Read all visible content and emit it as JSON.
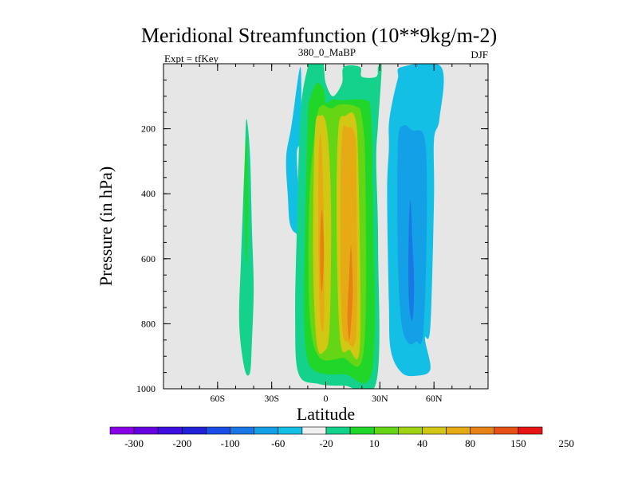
{
  "chart_data": {
    "type": "heatmap",
    "title": "Meridional Streamfunction (10**9kg/m-2)",
    "left_label": "Expt = tfKey",
    "center_label": "380_0_MaBP",
    "right_label": "DJF",
    "xlabel": "Latitude",
    "ylabel": "Pressure (in hPa)",
    "xlim": [
      -90,
      90
    ],
    "ylim": [
      1000,
      0
    ],
    "y_inverted": true,
    "x_ticks": [
      {
        "value": -60,
        "label": "60S"
      },
      {
        "value": -30,
        "label": "30S"
      },
      {
        "value": 0,
        "label": "0"
      },
      {
        "value": 30,
        "label": "30N"
      },
      {
        "value": 60,
        "label": "60N"
      }
    ],
    "y_ticks": [
      {
        "value": 200,
        "label": "200"
      },
      {
        "value": 400,
        "label": "400"
      },
      {
        "value": 600,
        "label": "600"
      },
      {
        "value": 800,
        "label": "800"
      },
      {
        "value": 1000,
        "label": "1000"
      }
    ],
    "background_color": "#e6e6e6",
    "colorbar": {
      "colors": [
        "#8a00e6",
        "#6600e0",
        "#3c0fe0",
        "#2020d6",
        "#1a4de6",
        "#1a78e6",
        "#14a0e6",
        "#14bfe6",
        "#f0f0f0",
        "#14d28c",
        "#20d628",
        "#64d614",
        "#a0d214",
        "#d2c814",
        "#e6aa14",
        "#e68214",
        "#e65014",
        "#e61414"
      ],
      "labels": [
        "-300",
        "-200",
        "-100",
        "-60",
        "-20",
        "10",
        "40",
        "80",
        "150",
        "250"
      ]
    },
    "contours": [
      {
        "level": "-10",
        "color": "#14bfe6",
        "points": [
          [
            -14,
            10
          ],
          [
            -14,
            225
          ],
          [
            -16,
            285
          ],
          [
            -14,
            505
          ],
          [
            -17,
            520
          ],
          [
            -20,
            490
          ],
          [
            -21,
            410
          ],
          [
            -22,
            290
          ],
          [
            -19,
            190
          ]
        ]
      },
      {
        "level": "-10",
        "color": "#14bfe6",
        "points": [
          [
            35,
            185
          ],
          [
            37,
            115
          ],
          [
            40,
            45
          ],
          [
            42,
            10
          ],
          [
            64,
            10
          ],
          [
            63,
            170
          ],
          [
            60,
            235
          ],
          [
            60,
            420
          ],
          [
            58,
            810
          ],
          [
            55,
            845
          ],
          [
            58,
            940
          ],
          [
            50,
            960
          ],
          [
            42,
            950
          ],
          [
            36,
            880
          ],
          [
            35,
            730
          ],
          [
            34,
            400
          ],
          [
            35,
            260
          ]
        ]
      },
      {
        "level": "-20",
        "color": "#14a0e6",
        "points": [
          [
            40,
            250
          ],
          [
            43,
            190
          ],
          [
            48,
            205
          ],
          [
            55,
            235
          ],
          [
            56,
            500
          ],
          [
            54,
            830
          ],
          [
            50,
            855
          ],
          [
            46,
            860
          ],
          [
            42,
            800
          ],
          [
            40,
            600
          ]
        ]
      },
      {
        "level": "-60",
        "color": "#1a78e6",
        "points": [
          [
            46,
            520
          ],
          [
            47,
            420
          ],
          [
            48,
            540
          ],
          [
            49,
            680
          ],
          [
            48,
            790
          ],
          [
            46,
            720
          ]
        ]
      },
      {
        "level": "10",
        "color": "#14d28c",
        "points": [
          [
            -44,
            170
          ],
          [
            -42,
            280
          ],
          [
            -41,
            500
          ],
          [
            -40,
            690
          ],
          [
            -41,
            860
          ],
          [
            -42,
            950
          ],
          [
            -45,
            940
          ],
          [
            -48,
            800
          ],
          [
            -47,
            600
          ],
          [
            -45,
            300
          ]
        ]
      },
      {
        "level": "10",
        "color": "#14d28c",
        "points": [
          [
            -10,
            10
          ],
          [
            -9,
            -2
          ],
          [
            -2,
            -2
          ],
          [
            -1,
            10
          ],
          [
            0,
            60
          ],
          [
            4,
            100
          ],
          [
            9,
            60
          ],
          [
            10,
            10
          ],
          [
            19,
            10
          ],
          [
            20,
            40
          ],
          [
            28,
            40
          ],
          [
            29,
            10
          ],
          [
            31,
            10
          ],
          [
            29,
            185
          ],
          [
            28,
            300
          ],
          [
            29,
            560
          ],
          [
            28,
            980
          ],
          [
            10,
            990
          ],
          [
            -4,
            985
          ],
          [
            -15,
            955
          ],
          [
            -17,
            790
          ],
          [
            -16,
            500
          ],
          [
            -14,
            150
          ]
        ]
      },
      {
        "level": "40",
        "color": "#20d628",
        "points": [
          [
            -10,
            165
          ],
          [
            -9,
            112
          ],
          [
            -5,
            60
          ],
          [
            -1,
            82
          ],
          [
            0,
            120
          ],
          [
            4,
            110
          ],
          [
            8,
            112
          ],
          [
            22,
            112
          ],
          [
            25,
            150
          ],
          [
            26,
            380
          ],
          [
            26,
            935
          ],
          [
            10,
            955
          ],
          [
            -6,
            945
          ],
          [
            -11,
            880
          ],
          [
            -12,
            700
          ],
          [
            -11,
            400
          ]
        ]
      },
      {
        "level": "40",
        "color": "#20d628",
        "points": [
          [
            -45,
            330
          ],
          [
            -44,
            225
          ],
          [
            -43,
            445
          ],
          [
            -44,
            620
          ],
          [
            -45,
            450
          ]
        ]
      },
      {
        "level": "80",
        "color": "#64d614",
        "points": [
          [
            -5,
            170
          ],
          [
            -2,
            128
          ],
          [
            3,
            138
          ],
          [
            8,
            125
          ],
          [
            17,
            132
          ],
          [
            20,
            165
          ],
          [
            22,
            340
          ],
          [
            21,
            885
          ],
          [
            9,
            905
          ],
          [
            -4,
            900
          ],
          [
            -9,
            760
          ],
          [
            -9,
            400
          ]
        ]
      },
      {
        "level": "150",
        "color": "#d2c814",
        "points": [
          [
            -6,
            210
          ],
          [
            -3,
            160
          ],
          [
            0,
            180
          ],
          [
            2,
            290
          ],
          [
            3,
            510
          ],
          [
            2,
            820
          ],
          [
            -1,
            885
          ],
          [
            -5,
            860
          ],
          [
            -7,
            600
          ]
        ]
      },
      {
        "level": "150",
        "color": "#d2c814",
        "points": [
          [
            7,
            200
          ],
          [
            11,
            160
          ],
          [
            16,
            162
          ],
          [
            18,
            300
          ],
          [
            19,
            860
          ],
          [
            13,
            880
          ],
          [
            8,
            850
          ],
          [
            6,
            500
          ]
        ]
      },
      {
        "level": "200",
        "color": "#e6aa14",
        "points": [
          [
            -4,
            300
          ],
          [
            -3,
            215
          ],
          [
            -2,
            290
          ],
          [
            -1,
            520
          ],
          [
            -1,
            800
          ],
          [
            -3,
            790
          ],
          [
            -4,
            600
          ]
        ]
      },
      {
        "level": "200",
        "color": "#e6aa14",
        "points": [
          [
            9,
            220
          ],
          [
            12,
            195
          ],
          [
            16,
            215
          ],
          [
            17,
            330
          ],
          [
            17,
            820
          ],
          [
            12,
            855
          ],
          [
            9,
            800
          ],
          [
            8,
            500
          ]
        ]
      },
      {
        "level": "250",
        "color": "#e68214",
        "points": [
          [
            -3,
            520
          ],
          [
            -2,
            450
          ],
          [
            -1,
            580
          ],
          [
            -2,
            700
          ],
          [
            -3,
            650
          ]
        ]
      },
      {
        "level": "250",
        "color": "#e68214",
        "points": [
          [
            12,
            780
          ],
          [
            13,
            650
          ],
          [
            14,
            560
          ],
          [
            15,
            690
          ],
          [
            14,
            800
          ],
          [
            13,
            850
          ]
        ]
      }
    ]
  }
}
